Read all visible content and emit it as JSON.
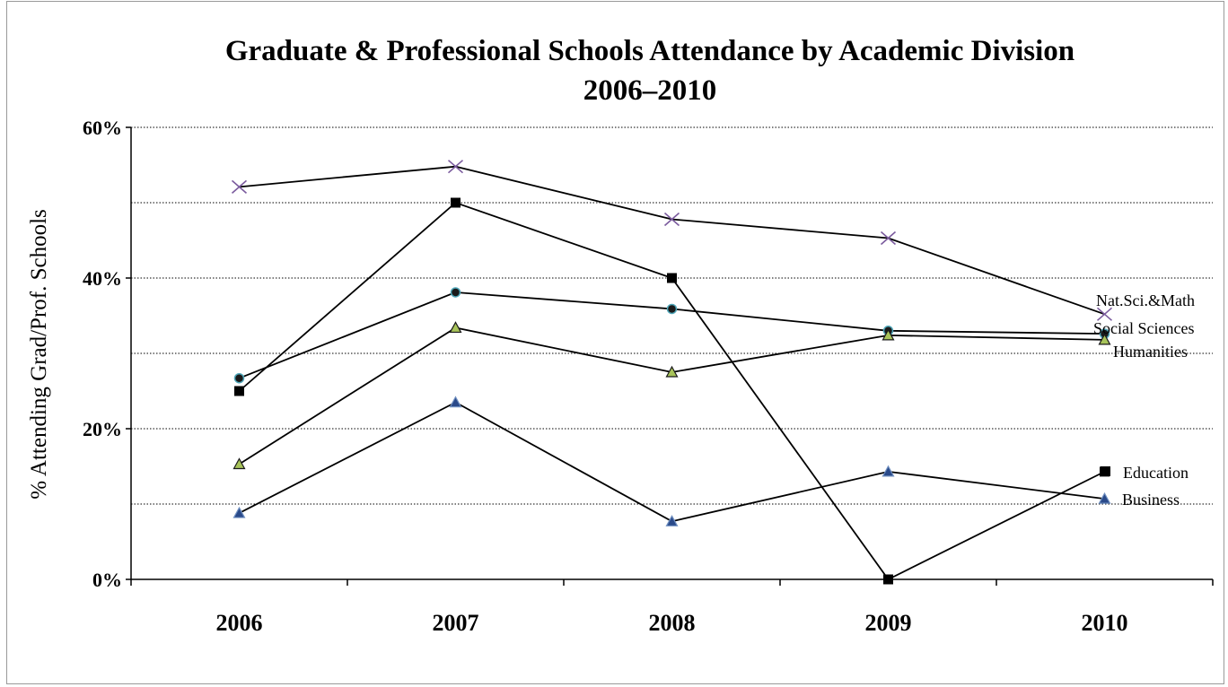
{
  "chart_data": {
    "type": "line",
    "title_line1": "Graduate & Professional Schools Attendance by Academic Division",
    "title_line2": "2006–2010",
    "ylabel": "% Attending  Grad/Prof. Schools",
    "xlabel": "",
    "x": [
      "2006",
      "2007",
      "2008",
      "2009",
      "2010"
    ],
    "ylim": [
      0,
      60
    ],
    "y_ticks": [
      "0%",
      "20%",
      "40%",
      "60%"
    ],
    "grid": "horizontal dotted every 10%",
    "series": [
      {
        "name": "Nat.Sci.&Math",
        "values": [
          52.1,
          54.8,
          47.8,
          45.3,
          35.2
        ],
        "marker": "x",
        "marker_color": "#7b5b9e"
      },
      {
        "name": "Social Sciences",
        "values": [
          26.7,
          38.1,
          35.9,
          33.0,
          32.6
        ],
        "marker": "circle",
        "marker_color": "#1a1a1a",
        "marker_stroke": "#4fa6b8"
      },
      {
        "name": "Humanities",
        "values": [
          15.3,
          33.4,
          27.5,
          32.4,
          31.8
        ],
        "marker": "triangle",
        "marker_color": "#a8c45a",
        "marker_stroke": "#1a1a1a"
      },
      {
        "name": "Education",
        "values": [
          25.0,
          50.0,
          40.0,
          0.0,
          14.3
        ],
        "marker": "square",
        "marker_color": "#000000"
      },
      {
        "name": "Business",
        "values": [
          8.8,
          23.5,
          7.7,
          14.3,
          10.7
        ],
        "marker": "triangle",
        "marker_color": "#2a4a8a",
        "marker_stroke": "#6f8fc0"
      }
    ]
  }
}
